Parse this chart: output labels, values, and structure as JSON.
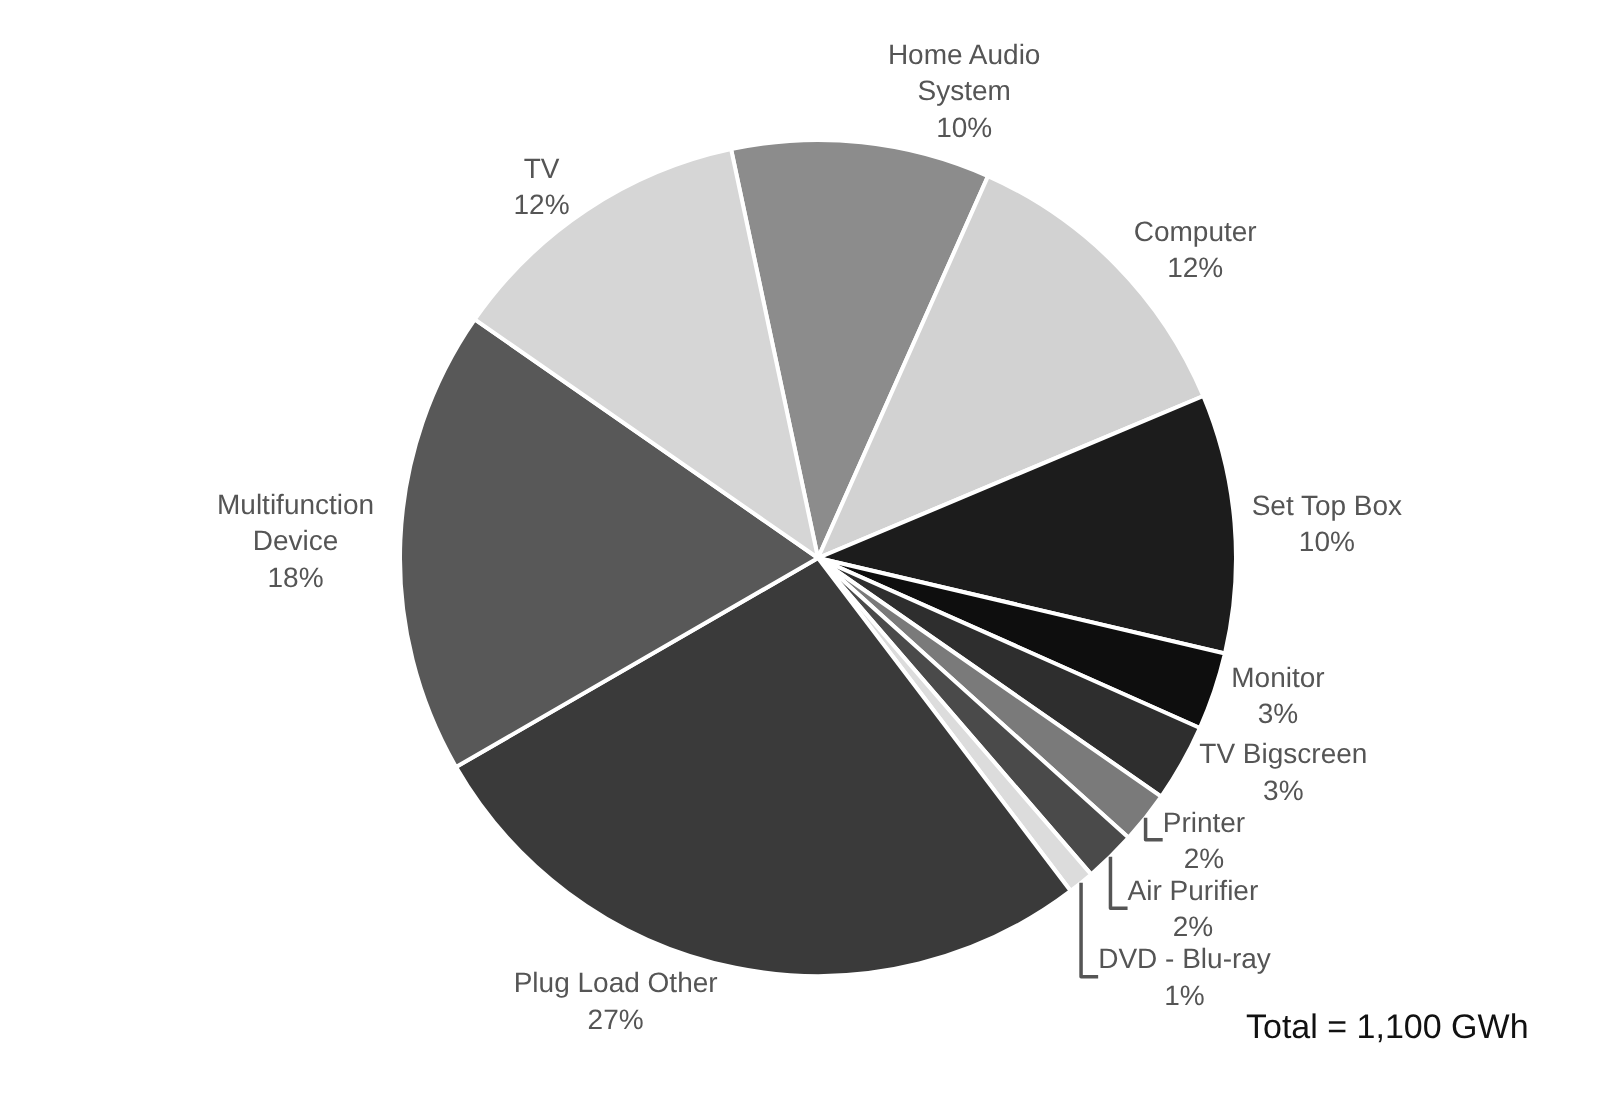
{
  "chart_data": {
    "type": "pie",
    "categories": [
      "Home Audio System",
      "Computer",
      "Set Top Box",
      "Monitor",
      "TV Bigscreen",
      "Printer",
      "Air Purifier",
      "DVD - Blu-ray",
      "Plug Load Other",
      "Multifunction Device",
      "TV"
    ],
    "values": [
      10,
      12,
      10,
      3,
      3,
      2,
      2,
      1,
      27,
      18,
      12
    ],
    "value_labels": [
      "10%",
      "12%",
      "10%",
      "3%",
      "3%",
      "2%",
      "2%",
      "1%",
      "27%",
      "18%",
      "12%"
    ],
    "colors": [
      "#8c8c8c",
      "#d2d2d2",
      "#1c1c1c",
      "#0e0e0e",
      "#2e2e2e",
      "#7a7a7a",
      "#4a4a4a",
      "#dcdcdc",
      "#3a3a3a",
      "#585858",
      "#d6d6d6"
    ],
    "annotations": [
      "Total = 1,100 GWh"
    ],
    "legend": false
  }
}
